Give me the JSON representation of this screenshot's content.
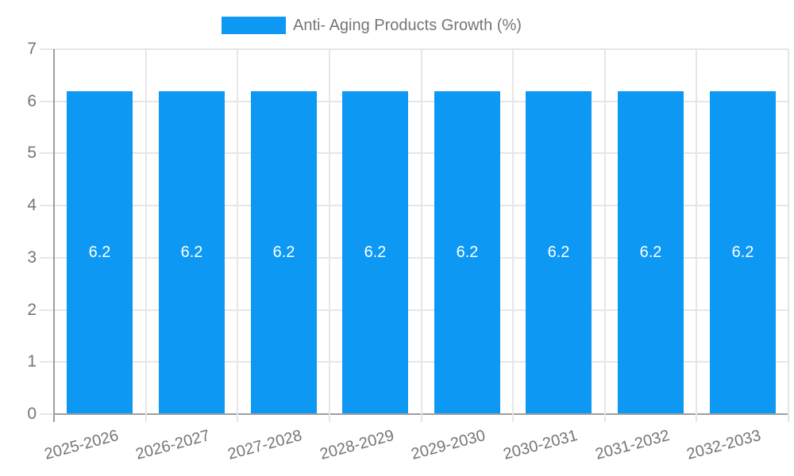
{
  "legend": {
    "label": "Anti- Aging Products Growth (%)"
  },
  "chart_data": {
    "type": "bar",
    "title": "Anti- Aging Products Growth (%)",
    "categories": [
      "2025-2026",
      "2026-2027",
      "2027-2028",
      "2028-2029",
      "2029-2030",
      "2030-2031",
      "2031-2032",
      "2032-2033"
    ],
    "values": [
      6.2,
      6.2,
      6.2,
      6.2,
      6.2,
      6.2,
      6.2,
      6.2
    ],
    "bar_labels": [
      "6.2",
      "6.2",
      "6.2",
      "6.2",
      "6.2",
      "6.2",
      "6.2",
      "6.2"
    ],
    "xlabel": "",
    "ylabel": "",
    "ylim": [
      0,
      7
    ],
    "yticks": [
      0,
      1,
      2,
      3,
      4,
      5,
      6,
      7
    ],
    "grid": true,
    "legend_position": "top-center",
    "colors": {
      "bar": "#0d98f4",
      "bar_label": "#ffffff",
      "axis_line": "#9e9e9e",
      "gridline": "#e6e6e6",
      "tick_label": "#757575"
    }
  }
}
